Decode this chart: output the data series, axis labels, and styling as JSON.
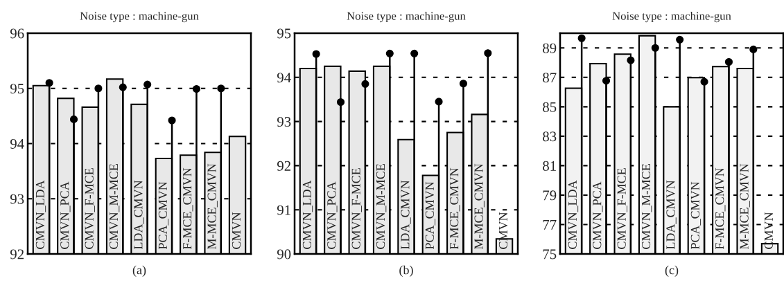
{
  "chart_data": [
    {
      "type": "bar",
      "title": "Noise type : machine-gun",
      "xlabel": "(a)",
      "categories": [
        "CMVN_LDA",
        "CMVN_PCA",
        "CMVN_F-MCE",
        "CMVN_M-MCE",
        "LDA_CMVN",
        "PCA_CMVN",
        "F-MCE_CMVN",
        "M-MCE_CMVN",
        "CMVN"
      ],
      "series": [
        {
          "color": "#e8e8e8",
          "values": [
            95.05,
            94.82,
            94.66,
            95.17,
            94.71,
            93.73,
            93.79,
            93.84,
            94.13
          ]
        },
        {
          "type": "lollipop",
          "color": "#000000",
          "values": [
            95.1,
            94.44,
            95.0,
            95.02,
            95.07,
            94.42,
            94.99,
            95.0,
            null
          ]
        }
      ],
      "ylim": [
        92,
        96
      ],
      "yticks": [
        92,
        93,
        94,
        95,
        96
      ],
      "grid": "y",
      "marker": "circle"
    },
    {
      "type": "bar",
      "title": "Noise type : machine-gun",
      "xlabel": "(b)",
      "categories": [
        "CMVN_LDA",
        "CMVN_PCA",
        "CMVN_F-MCE",
        "CMVN_M-MCE",
        "LDA_CMVN",
        "PCA_CMVN",
        "F-MCE_CMVN",
        "M-MCE_CMVN",
        "CMVN"
      ],
      "series": [
        {
          "color": "#e8e8e8",
          "values": [
            94.2,
            94.25,
            94.14,
            94.25,
            92.59,
            91.78,
            92.75,
            93.16,
            90.34
          ]
        },
        {
          "type": "lollipop",
          "color": "#000000",
          "values": [
            94.53,
            93.44,
            93.85,
            94.54,
            94.54,
            93.45,
            93.86,
            94.55,
            null
          ]
        }
      ],
      "ylim": [
        90,
        95
      ],
      "yticks": [
        90,
        91,
        92,
        93,
        94,
        95
      ],
      "grid": "y",
      "marker": "circle"
    },
    {
      "type": "bar",
      "title": "Noise type : machine-gun",
      "xlabel": "(c)",
      "categories": [
        "CMVN_LDA",
        "CMVN_PCA",
        "CMVN_F-MCE",
        "CMVN_M-MCE",
        "LDA_CMVN",
        "PCA_CMVN",
        "F-MCE_CMVN",
        "M-MCE_CMVN",
        "CMVN"
      ],
      "series": [
        {
          "color": "#f2f2f2",
          "values": [
            86.26,
            87.93,
            88.58,
            89.83,
            85.0,
            86.98,
            87.73,
            87.6,
            75.7
          ]
        },
        {
          "type": "lollipop",
          "color": "#000000",
          "values": [
            89.66,
            86.77,
            88.16,
            89.0,
            89.56,
            86.7,
            88.05,
            88.9,
            null
          ]
        }
      ],
      "ylim": [
        75,
        90
      ],
      "yticks": [
        75,
        77,
        79,
        81,
        83,
        85,
        87,
        89
      ],
      "grid": "y",
      "marker": "circle"
    }
  ]
}
